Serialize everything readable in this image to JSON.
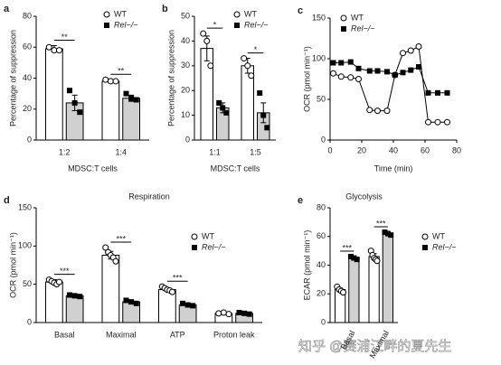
{
  "chart_data": [
    {
      "type": "bar",
      "label": "a",
      "ylabel": "Percentage of suppression",
      "xlabel": "MDSC:T cells",
      "categories": [
        "1:2",
        "1:4"
      ],
      "ylim": [
        0,
        80
      ],
      "yticks": [
        0,
        20,
        40,
        60,
        80
      ],
      "sig": [
        "**",
        "**"
      ],
      "series": [
        {
          "name": "WT",
          "color": "#ffffff",
          "marker": "circle",
          "values": [
            59,
            38
          ],
          "errors": [
            2,
            1
          ],
          "points": [
            [
              60,
              58,
              58
            ],
            [
              39,
              38,
              38
            ]
          ]
        },
        {
          "name": "Rel−/−",
          "color": "#d0d0d0",
          "marker": "square",
          "values": [
            24,
            27
          ],
          "errors": [
            5,
            2
          ],
          "points": [
            [
              32,
              24,
              18
            ],
            [
              30,
              27,
              26
            ]
          ]
        }
      ]
    },
    {
      "type": "bar",
      "label": "b",
      "ylabel": "Percentage of suppression",
      "xlabel": "MDSC:T cells",
      "categories": [
        "1:1",
        "1:5"
      ],
      "ylim": [
        0,
        50
      ],
      "yticks": [
        0,
        10,
        20,
        30,
        40,
        50
      ],
      "sig": [
        "*",
        "*"
      ],
      "series": [
        {
          "name": "WT",
          "color": "#ffffff",
          "marker": "circle",
          "values": [
            37,
            30
          ],
          "errors": [
            5,
            3
          ],
          "points": [
            [
              43,
              40,
              30
            ],
            [
              33,
              30,
              26
            ]
          ]
        },
        {
          "name": "Rel−/−",
          "color": "#d0d0d0",
          "marker": "square",
          "values": [
            13,
            11
          ],
          "errors": [
            2,
            4
          ],
          "points": [
            [
              15,
              13,
              11
            ],
            [
              19,
              10,
              5
            ]
          ]
        }
      ]
    },
    {
      "type": "line",
      "label": "c",
      "ylabel": "OCR (pmol min⁻¹)",
      "xlabel": "Time (min)",
      "x": [
        2,
        7,
        13,
        18,
        25,
        30,
        36,
        41,
        46,
        51,
        56,
        62,
        68,
        74
      ],
      "xlim": [
        0,
        80
      ],
      "xticks": [
        0,
        20,
        40,
        60,
        80
      ],
      "ylim": [
        0,
        150
      ],
      "yticks": [
        0,
        50,
        100,
        150
      ],
      "series": [
        {
          "name": "WT",
          "color": "#000000",
          "marker": "circle",
          "values": [
            82,
            78,
            77,
            75,
            37,
            36,
            36,
            80,
            107,
            110,
            115,
            22,
            22,
            22
          ]
        },
        {
          "name": "Rel−/−",
          "color": "#000000",
          "marker": "square",
          "values": [
            95,
            95,
            96,
            88,
            85,
            85,
            84,
            80,
            83,
            86,
            90,
            58,
            58,
            58
          ]
        }
      ]
    },
    {
      "type": "bar",
      "label": "d",
      "title": "Respiration",
      "ylabel": "OCR (pmol min⁻¹)",
      "categories": [
        "Basal",
        "Maximal",
        "ATP",
        "Proton leak"
      ],
      "ylim": [
        0,
        150
      ],
      "yticks": [
        0,
        50,
        100,
        150
      ],
      "sig": [
        "***",
        "***",
        "***",
        null
      ],
      "series": [
        {
          "name": "WT",
          "color": "#ffffff",
          "marker": "circle",
          "values": [
            53,
            88,
            43,
            12
          ],
          "errors": [
            3,
            5,
            2,
            1
          ],
          "points": [
            [
              56,
              54,
              52,
              50,
              53
            ],
            [
              98,
              92,
              88,
              85,
              80
            ],
            [
              47,
              45,
              43,
              42,
              40
            ],
            [
              12,
              13,
              11
            ]
          ]
        },
        {
          "name": "Rel−/−",
          "color": "#d0d0d0",
          "marker": "square",
          "values": [
            35,
            27,
            23,
            12
          ],
          "errors": [
            1,
            1,
            1,
            1
          ],
          "points": [
            [
              36,
              35,
              34
            ],
            [
              29,
              27,
              25
            ],
            [
              25,
              23,
              22
            ],
            [
              13,
              12,
              11
            ]
          ]
        }
      ]
    },
    {
      "type": "bar",
      "label": "e",
      "title": "Glycolysis",
      "ylabel": "ECAR (pmol min⁻¹)",
      "xtick_rotation": -60,
      "categories": [
        "Basal",
        "Maximal"
      ],
      "ylim": [
        0,
        80
      ],
      "yticks": [
        0,
        20,
        40,
        60,
        80
      ],
      "sig": [
        "***",
        "***"
      ],
      "series": [
        {
          "name": "WT",
          "color": "#ffffff",
          "marker": "circle",
          "values": [
            23,
            46
          ],
          "errors": [
            1,
            2
          ],
          "points": [
            [
              25,
              23,
              22,
              21
            ],
            [
              50,
              47,
              45,
              44,
              43
            ]
          ]
        },
        {
          "name": "Rel−/−",
          "color": "#d0d0d0",
          "marker": "square",
          "values": [
            45,
            62
          ],
          "errors": [
            1,
            1
          ],
          "points": [
            [
              46,
              45,
              44
            ],
            [
              63,
              62,
              61
            ]
          ]
        }
      ]
    }
  ],
  "watermark": "知乎 @赛浦江畔的夏先生"
}
